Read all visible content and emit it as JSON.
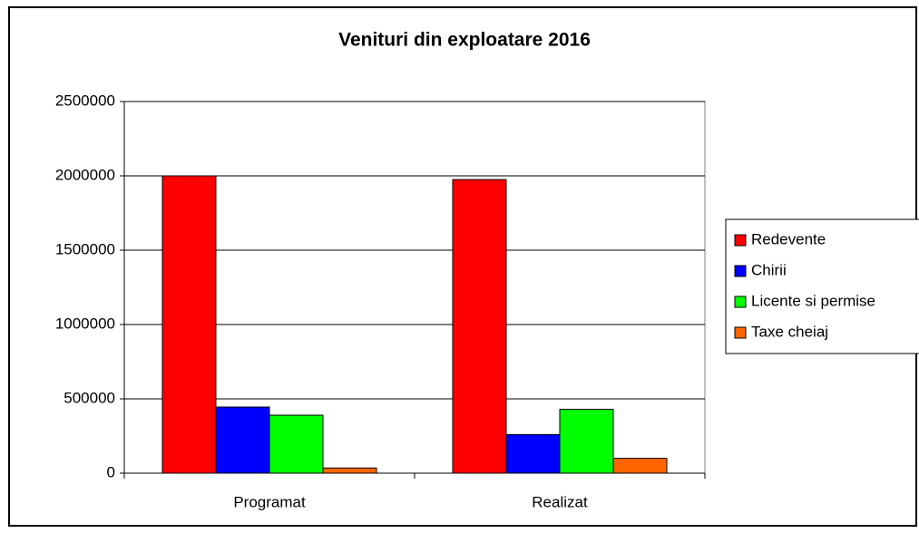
{
  "chart_data": {
    "type": "bar",
    "title": "Venituri din exploatare 2016",
    "categories": [
      "Programat",
      "Realizat"
    ],
    "series": [
      {
        "name": "Redevente",
        "color": "#ff0000",
        "values": [
          2000000,
          1975000
        ]
      },
      {
        "name": "Chirii",
        "color": "#0000ff",
        "values": [
          445000,
          260000
        ]
      },
      {
        "name": "Licente si permise",
        "color": "#00ff00",
        "values": [
          390000,
          430000
        ]
      },
      {
        "name": "Taxe cheiaj",
        "color": "#ff6600",
        "values": [
          35000,
          100000
        ]
      }
    ],
    "ylim": [
      0,
      2500000
    ],
    "yticks": [
      0,
      500000,
      1000000,
      1500000,
      2000000,
      2500000
    ],
    "grid": true,
    "legend": "right"
  }
}
